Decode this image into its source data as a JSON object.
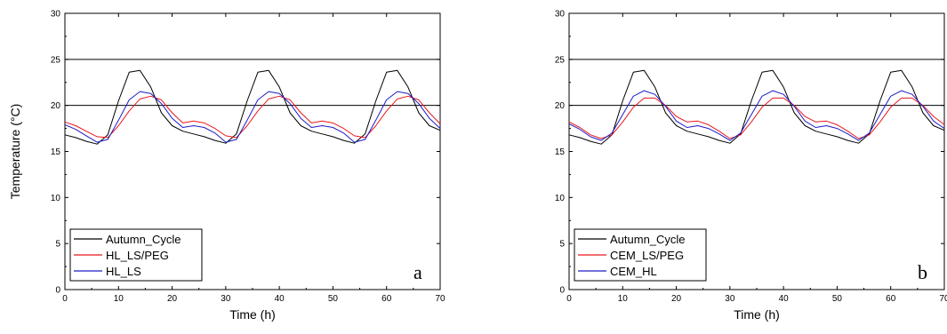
{
  "chart_data": [
    {
      "type": "line",
      "panel_label": "a",
      "xlabel": "Time (h)",
      "ylabel": "Temperature (°C)",
      "xlim": [
        0,
        70
      ],
      "ylim": [
        0,
        30
      ],
      "x_ticks": [
        "0",
        "10",
        "20",
        "30",
        "40",
        "50",
        "60",
        "70"
      ],
      "y_ticks": [
        "0",
        "5",
        "10",
        "15",
        "20",
        "25",
        "30"
      ],
      "reference_lines": [
        20,
        25
      ],
      "legend_position": "bottom-left",
      "x": [
        0,
        2,
        4,
        6,
        8,
        10,
        12,
        14,
        16,
        18,
        20,
        22,
        24,
        26,
        28,
        30,
        32,
        34,
        36,
        38,
        40,
        42,
        44,
        46,
        48,
        50,
        52,
        54,
        56,
        58,
        60,
        62,
        64,
        66,
        68,
        70
      ],
      "series": [
        {
          "name": "Autumn_Cycle",
          "color": "#000000",
          "values": [
            16.8,
            16.5,
            16.1,
            15.8,
            16.8,
            20.5,
            23.6,
            23.8,
            22.0,
            19.2,
            17.8,
            17.2,
            16.9,
            16.6,
            16.2,
            15.9,
            16.9,
            20.5,
            23.6,
            23.8,
            22.0,
            19.2,
            17.8,
            17.2,
            16.9,
            16.6,
            16.2,
            15.9,
            16.9,
            20.5,
            23.6,
            23.8,
            22.0,
            19.2,
            17.8,
            17.3
          ]
        },
        {
          "name": "HL_LS/PEG",
          "color": "#e8171c",
          "values": [
            18.2,
            17.8,
            17.2,
            16.6,
            16.5,
            17.8,
            19.4,
            20.7,
            21.0,
            20.6,
            19.2,
            18.1,
            18.3,
            18.1,
            17.5,
            16.7,
            16.5,
            17.8,
            19.4,
            20.7,
            21.0,
            20.6,
            19.2,
            18.1,
            18.3,
            18.1,
            17.5,
            16.7,
            16.5,
            17.8,
            19.4,
            20.7,
            21.0,
            20.6,
            19.2,
            18.0
          ]
        },
        {
          "name": "HL_LS",
          "color": "#1c1cc8",
          "values": [
            17.9,
            17.4,
            16.7,
            16.0,
            16.3,
            18.4,
            20.6,
            21.5,
            21.3,
            20.2,
            18.6,
            17.6,
            17.8,
            17.6,
            17.0,
            16.0,
            16.3,
            18.4,
            20.6,
            21.5,
            21.3,
            20.2,
            18.6,
            17.6,
            17.8,
            17.6,
            17.0,
            16.0,
            16.3,
            18.4,
            20.6,
            21.5,
            21.3,
            20.2,
            18.6,
            17.5
          ]
        }
      ]
    },
    {
      "type": "line",
      "panel_label": "b",
      "xlabel": "Time (h)",
      "ylabel": "",
      "xlim": [
        0,
        70
      ],
      "ylim": [
        0,
        30
      ],
      "x_ticks": [
        "0",
        "10",
        "20",
        "30",
        "40",
        "50",
        "60",
        "70"
      ],
      "y_ticks": [
        "0",
        "5",
        "10",
        "15",
        "20",
        "25",
        "30"
      ],
      "reference_lines": [
        20,
        25
      ],
      "legend_position": "bottom-left",
      "x": [
        0,
        2,
        4,
        6,
        8,
        10,
        12,
        14,
        16,
        18,
        20,
        22,
        24,
        26,
        28,
        30,
        32,
        34,
        36,
        38,
        40,
        42,
        44,
        46,
        48,
        50,
        52,
        54,
        56,
        58,
        60,
        62,
        64,
        66,
        68,
        70
      ],
      "series": [
        {
          "name": "Autumn_Cycle",
          "color": "#000000",
          "values": [
            16.8,
            16.5,
            16.1,
            15.8,
            16.8,
            20.5,
            23.6,
            23.8,
            22.0,
            19.2,
            17.8,
            17.2,
            16.9,
            16.6,
            16.2,
            15.9,
            16.9,
            20.5,
            23.6,
            23.8,
            22.0,
            19.2,
            17.8,
            17.2,
            16.9,
            16.6,
            16.2,
            15.9,
            16.9,
            20.5,
            23.6,
            23.8,
            22.0,
            19.2,
            17.8,
            17.3
          ]
        },
        {
          "name": "CEM_LS/PEG",
          "color": "#e8171c",
          "values": [
            18.2,
            17.6,
            16.8,
            16.4,
            16.8,
            18.2,
            19.8,
            20.8,
            20.8,
            20.0,
            18.8,
            18.2,
            18.3,
            17.9,
            17.2,
            16.4,
            16.8,
            18.2,
            19.8,
            20.8,
            20.8,
            20.0,
            18.8,
            18.2,
            18.3,
            17.9,
            17.2,
            16.4,
            16.8,
            18.2,
            19.8,
            20.8,
            20.8,
            20.0,
            18.8,
            17.9
          ]
        },
        {
          "name": "CEM_HL",
          "color": "#1c1cc8",
          "values": [
            18.0,
            17.4,
            16.6,
            16.2,
            17.0,
            19.0,
            21.0,
            21.6,
            21.2,
            19.9,
            18.3,
            17.6,
            17.8,
            17.5,
            16.9,
            16.2,
            17.0,
            19.0,
            21.0,
            21.6,
            21.2,
            19.9,
            18.3,
            17.6,
            17.8,
            17.5,
            16.9,
            16.2,
            17.0,
            19.0,
            21.0,
            21.6,
            21.2,
            19.9,
            18.3,
            17.5
          ]
        }
      ]
    }
  ]
}
